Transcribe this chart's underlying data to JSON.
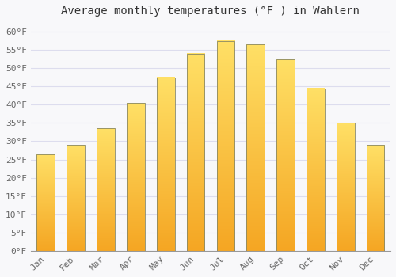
{
  "title": "Average monthly temperatures (°F ) in Wahlern",
  "months": [
    "Jan",
    "Feb",
    "Mar",
    "Apr",
    "May",
    "Jun",
    "Jul",
    "Aug",
    "Sep",
    "Oct",
    "Nov",
    "Dec"
  ],
  "values": [
    26.5,
    29.0,
    33.5,
    40.5,
    47.5,
    54.0,
    57.5,
    56.5,
    52.5,
    44.5,
    35.0,
    29.0
  ],
  "bar_color_bottom": "#F5A623",
  "bar_color_top": "#FFE066",
  "bar_edge_color": "#888866",
  "background_color": "#F8F8FA",
  "plot_bg_color": "#F8F8FA",
  "grid_color": "#DDDDEE",
  "ylim": [
    0,
    63
  ],
  "yticks": [
    0,
    5,
    10,
    15,
    20,
    25,
    30,
    35,
    40,
    45,
    50,
    55,
    60
  ],
  "ytick_labels": [
    "0°F",
    "5°F",
    "10°F",
    "15°F",
    "20°F",
    "25°F",
    "30°F",
    "35°F",
    "40°F",
    "45°F",
    "50°F",
    "55°F",
    "60°F"
  ],
  "title_fontsize": 10,
  "tick_fontsize": 8,
  "font_family": "monospace",
  "tick_color": "#666666",
  "bar_width": 0.6
}
